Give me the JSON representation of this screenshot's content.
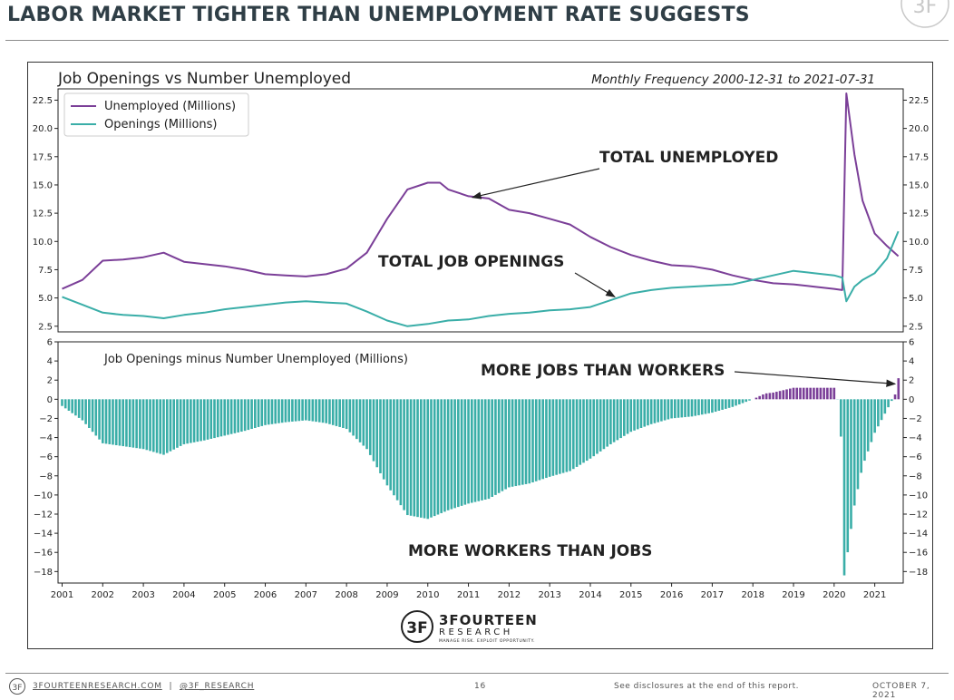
{
  "slide": {
    "title": "LABOR MARKET TIGHTER THAN UNEMPLOYMENT RATE SUGGESTS",
    "footer_site": "3FOURTEENRESEARCH.COM",
    "footer_separator": "|",
    "footer_handle": "@3F_RESEARCH",
    "page_number": "16",
    "disclosure": "See disclosures at the end of this report.",
    "date": "OCTOBER 7, 2021",
    "logo_name": "3FOURTEEN",
    "logo_sub": "RESEARCH",
    "logo_tagline": "MANAGE RISK. EXPLOIT OPPORTUNITY.",
    "logo_monogram": "3F"
  },
  "colors": {
    "unemployed": "#7b3f98",
    "openings": "#3aaea8",
    "title": "#2f3e46"
  },
  "chart_data": [
    {
      "type": "line",
      "title": "Job Openings vs Number Unemployed",
      "subtitle": "Monthly Frequency 2000-12-31 to 2021-07-31",
      "legend_position": "top-left",
      "yticks": [
        "2.5",
        "5.0",
        "7.5",
        "10.0",
        "12.5",
        "15.0",
        "17.5",
        "20.0",
        "22.5"
      ],
      "ylim": [
        2,
        23.5
      ],
      "xlim": [
        2000.9,
        2021.7
      ],
      "series": [
        {
          "name": "Unemployed (Millions)",
          "x": [
            2001.0,
            2001.5,
            2002.0,
            2002.5,
            2003.0,
            2003.5,
            2004.0,
            2004.5,
            2005.0,
            2005.5,
            2006.0,
            2006.5,
            2007.0,
            2007.5,
            2008.0,
            2008.5,
            2009.0,
            2009.5,
            2010.0,
            2010.3,
            2010.5,
            2011.0,
            2011.5,
            2012.0,
            2012.5,
            2013.0,
            2013.5,
            2014.0,
            2014.5,
            2015.0,
            2015.5,
            2016.0,
            2016.5,
            2017.0,
            2017.5,
            2018.0,
            2018.5,
            2019.0,
            2019.5,
            2020.0,
            2020.2,
            2020.3,
            2020.5,
            2020.7,
            2021.0,
            2021.3,
            2021.58
          ],
          "values": [
            5.8,
            6.6,
            8.3,
            8.4,
            8.6,
            9.0,
            8.2,
            8.0,
            7.8,
            7.5,
            7.1,
            7.0,
            6.9,
            7.1,
            7.6,
            9.0,
            12.0,
            14.6,
            15.2,
            15.2,
            14.6,
            14.0,
            13.8,
            12.8,
            12.5,
            12.0,
            11.5,
            10.4,
            9.5,
            8.8,
            8.3,
            7.9,
            7.8,
            7.5,
            7.0,
            6.6,
            6.3,
            6.2,
            6.0,
            5.8,
            5.7,
            23.1,
            17.7,
            13.6,
            10.7,
            9.6,
            8.7
          ]
        },
        {
          "name": "Openings (Millions)",
          "x": [
            2001.0,
            2001.5,
            2002.0,
            2002.5,
            2003.0,
            2003.5,
            2004.0,
            2004.5,
            2005.0,
            2005.5,
            2006.0,
            2006.5,
            2007.0,
            2007.5,
            2008.0,
            2008.5,
            2009.0,
            2009.5,
            2010.0,
            2010.5,
            2011.0,
            2011.5,
            2012.0,
            2012.5,
            2013.0,
            2013.5,
            2014.0,
            2014.5,
            2015.0,
            2015.5,
            2016.0,
            2016.5,
            2017.0,
            2017.5,
            2018.0,
            2018.5,
            2019.0,
            2019.5,
            2020.0,
            2020.2,
            2020.3,
            2020.5,
            2020.7,
            2021.0,
            2021.3,
            2021.58
          ],
          "values": [
            5.1,
            4.4,
            3.7,
            3.5,
            3.4,
            3.2,
            3.5,
            3.7,
            4.0,
            4.2,
            4.4,
            4.6,
            4.7,
            4.6,
            4.5,
            3.8,
            3.0,
            2.5,
            2.7,
            3.0,
            3.1,
            3.4,
            3.6,
            3.7,
            3.9,
            4.0,
            4.2,
            4.8,
            5.4,
            5.7,
            5.9,
            6.0,
            6.1,
            6.2,
            6.6,
            7.0,
            7.4,
            7.2,
            7.0,
            6.8,
            4.7,
            6.0,
            6.6,
            7.2,
            8.5,
            10.9
          ]
        }
      ],
      "annotations": [
        {
          "text": "TOTAL UNEMPLOYED",
          "target": [
            2011.1,
            13.9
          ]
        },
        {
          "text": "TOTAL JOB OPENINGS",
          "target": [
            2014.6,
            5.1
          ]
        }
      ]
    },
    {
      "type": "bar",
      "title": "Job Openings minus Number Unemployed (Millions)",
      "yticks": [
        "6",
        "4",
        "2",
        "0",
        "−2",
        "−4",
        "−6",
        "−8",
        "−10",
        "−12",
        "−14",
        "−16",
        "−18"
      ],
      "ylim": [
        -19.2,
        6
      ],
      "xlim": [
        2000.9,
        2021.7
      ],
      "xticks": [
        "2001",
        "2002",
        "2003",
        "2004",
        "2005",
        "2006",
        "2007",
        "2008",
        "2009",
        "2010",
        "2011",
        "2012",
        "2013",
        "2014",
        "2015",
        "2016",
        "2017",
        "2018",
        "2019",
        "2020",
        "2021"
      ],
      "series": [
        {
          "name": "Openings minus Unemployed",
          "x": [
            2001.0,
            2001.5,
            2002.0,
            2002.5,
            2003.0,
            2003.5,
            2004.0,
            2004.5,
            2005.0,
            2005.5,
            2006.0,
            2006.5,
            2007.0,
            2007.5,
            2008.0,
            2008.5,
            2009.0,
            2009.5,
            2010.0,
            2010.5,
            2011.0,
            2011.5,
            2012.0,
            2012.5,
            2013.0,
            2013.5,
            2014.0,
            2014.5,
            2015.0,
            2015.5,
            2016.0,
            2016.5,
            2017.0,
            2017.5,
            2018.0,
            2018.3,
            2018.5,
            2019.0,
            2019.5,
            2020.0,
            2020.15,
            2020.25,
            2020.35,
            2020.5,
            2020.7,
            2021.0,
            2021.3,
            2021.5,
            2021.58
          ],
          "values": [
            -0.7,
            -2.2,
            -4.6,
            -4.9,
            -5.2,
            -5.8,
            -4.7,
            -4.3,
            -3.8,
            -3.3,
            -2.7,
            -2.4,
            -2.2,
            -2.5,
            -3.1,
            -5.2,
            -9.0,
            -12.1,
            -12.5,
            -11.6,
            -10.9,
            -10.4,
            -9.2,
            -8.8,
            -8.1,
            -7.5,
            -6.2,
            -4.7,
            -3.4,
            -2.6,
            -2.0,
            -1.8,
            -1.4,
            -0.8,
            0.0,
            0.6,
            0.7,
            1.2,
            1.2,
            1.2,
            -1.0,
            -18.4,
            -15.5,
            -11.1,
            -7.0,
            -3.5,
            -1.1,
            0.5,
            2.2
          ]
        }
      ],
      "annotations": [
        {
          "text": "MORE JOBS THAN WORKERS",
          "target": [
            2021.5,
            1.6
          ]
        },
        {
          "text": "MORE WORKERS THAN JOBS"
        }
      ]
    }
  ]
}
